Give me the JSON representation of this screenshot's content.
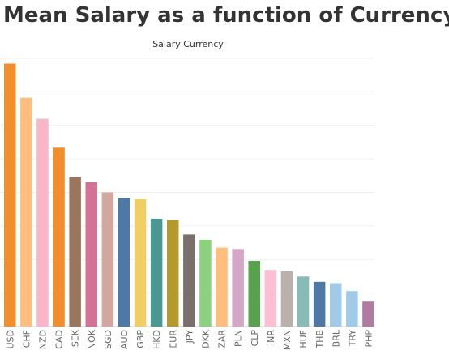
{
  "page": {
    "title": "Mean Salary as a function of Currency"
  },
  "chart_data": {
    "type": "bar",
    "header": "Salary Currency",
    "categories": [
      "USD",
      "CHF",
      "NZD",
      "CAD",
      "SEK",
      "NOK",
      "SGD",
      "AUD",
      "GBP",
      "HKD",
      "EUR",
      "JPY",
      "DKK",
      "ZAR",
      "PLN",
      "CLP",
      "INR",
      "MXN",
      "HUF",
      "THB",
      "BRL",
      "TRY",
      "PHP"
    ],
    "values": [
      100,
      87,
      79,
      68,
      57,
      55,
      51,
      49,
      48.5,
      41,
      40.5,
      35,
      33,
      30,
      29.5,
      25,
      21.5,
      21,
      19,
      17,
      16.5,
      13.5,
      9.5
    ],
    "colors": [
      "#f28e2b",
      "#ffbe7d",
      "#f9b6c8",
      "#f28e2b",
      "#9c755f",
      "#d37295",
      "#d4a6a0",
      "#4e79a7",
      "#f1ce63",
      "#499894",
      "#b6992d",
      "#79706e",
      "#8cd17d",
      "#ffbe7d",
      "#d4a6c8",
      "#59a14f",
      "#fabfd2",
      "#bab0ac",
      "#86bcb6",
      "#4e79a7",
      "#a0cbe8",
      "#a0cbe8",
      "#b07aa1"
    ],
    "ylim": [
      0,
      102
    ],
    "grid": true,
    "xlabel": "",
    "ylabel": ""
  }
}
